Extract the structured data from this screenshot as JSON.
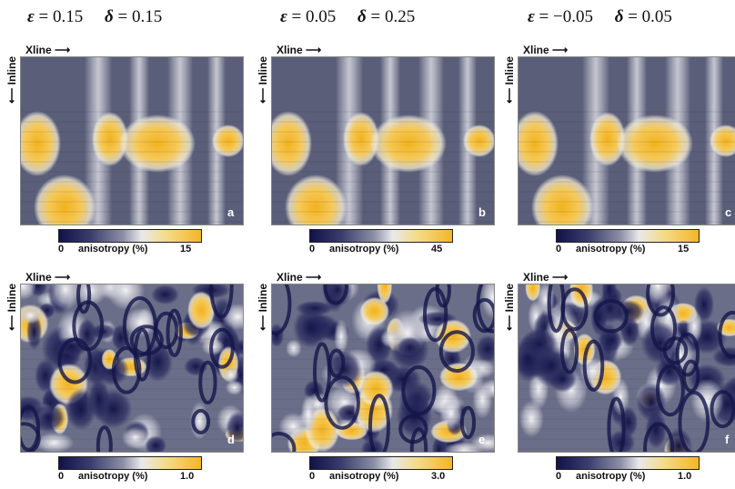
{
  "headers": [
    {
      "eps_sym": "ε",
      "eps_val": "= 0.15",
      "delta_sym": "δ",
      "delta_val": "= 0.15"
    },
    {
      "eps_sym": "ε",
      "eps_val": "= 0.05",
      "delta_sym": "δ",
      "delta_val": "= 0.25"
    },
    {
      "eps_sym": "ε",
      "eps_val": "= −0.05",
      "delta_sym": "δ",
      "delta_val": "= 0.05"
    }
  ],
  "axis_labels": {
    "xline": "Xline",
    "inline": "Inline"
  },
  "colorbar_label": "anisotropy (%)",
  "colors": {
    "low": "#11124a",
    "mid": "#e9e9ec",
    "high": "#f4b628"
  },
  "panels": [
    {
      "letter": "a",
      "cbar_min": "0",
      "cbar_max": "15"
    },
    {
      "letter": "b",
      "cbar_min": "0",
      "cbar_max": "45"
    },
    {
      "letter": "c",
      "cbar_min": "0",
      "cbar_max": "15"
    },
    {
      "letter": "d",
      "cbar_min": "0",
      "cbar_max": "1.0"
    },
    {
      "letter": "e",
      "cbar_min": "0",
      "cbar_max": "3.0"
    },
    {
      "letter": "f",
      "cbar_min": "0",
      "cbar_max": "1.0"
    }
  ]
}
